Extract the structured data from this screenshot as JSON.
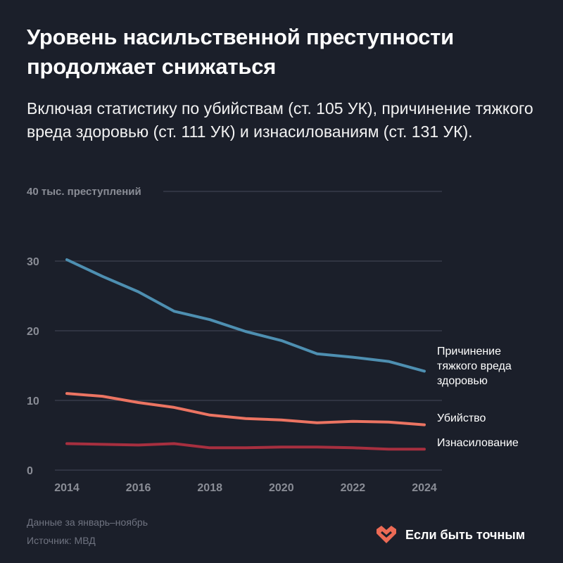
{
  "title": "Уровень насильственной преступности продолжает снижаться",
  "subtitle": "Включая статистику по убийствам (ст. 105 УК), причинение тяжкого вреда здоровью (ст. 111 УК) и изнасилованиям (ст. 131 УК).",
  "colors": {
    "background": "#1b1f2a",
    "harm": "#4e8fb1",
    "murder": "#ec7462",
    "rape": "#a72f3f",
    "grid": "#3d4150",
    "brand": "#ec6a55"
  },
  "chart_data": {
    "type": "line",
    "ylabel": "40 тыс. преступлений",
    "ylim": [
      0,
      40
    ],
    "yticks": [
      0,
      10,
      20,
      30
    ],
    "grid": true,
    "x": [
      2014,
      2015,
      2016,
      2017,
      2018,
      2019,
      2020,
      2021,
      2022,
      2023,
      2024
    ],
    "xticks": [
      "2014",
      "2016",
      "2018",
      "2020",
      "2022",
      "2024"
    ],
    "series": [
      {
        "name": "Причинение тяжкого вреда здоровью",
        "label_lines": [
          "Причинение",
          "тяжкого вреда",
          "здоровью"
        ],
        "values": [
          30.2,
          27.8,
          25.6,
          22.8,
          21.6,
          19.9,
          18.6,
          16.7,
          16.2,
          15.6,
          14.2
        ]
      },
      {
        "name": "Убийство",
        "label_lines": [
          "Убийство"
        ],
        "values": [
          11.0,
          10.6,
          9.7,
          9.0,
          7.9,
          7.4,
          7.2,
          6.8,
          7.0,
          6.9,
          6.5
        ]
      },
      {
        "name": "Изнасилование",
        "label_lines": [
          "Изнасилование"
        ],
        "values": [
          3.8,
          3.7,
          3.6,
          3.8,
          3.2,
          3.2,
          3.3,
          3.3,
          3.2,
          3.0,
          3.0
        ]
      }
    ]
  },
  "footer": {
    "note": "Данные за январь–ноябрь",
    "source": "Источник: МВД",
    "brand": "Если быть точным"
  }
}
